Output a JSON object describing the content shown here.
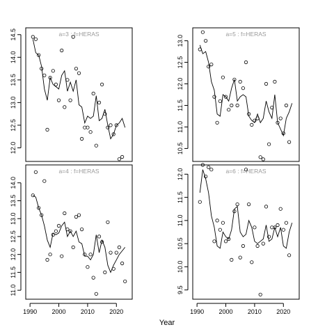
{
  "figure": {
    "xlabel": "Year"
  },
  "chart_data": [
    {
      "type": "scatter",
      "title": "a=3 : f=HERAS",
      "xlim": [
        1989,
        2025
      ],
      "ylim": [
        11.7,
        14.65
      ],
      "yticks": [
        12.0,
        12.5,
        13.0,
        13.5,
        14.0,
        14.5
      ],
      "xticks": [
        1990,
        2000,
        2010,
        2020
      ],
      "show_xticks": false,
      "series": [
        {
          "kind": "line",
          "x": [
            1991,
            1992,
            1993,
            1994,
            1995,
            1996,
            1997,
            1998,
            1999,
            2000,
            2001,
            2002,
            2003,
            2004,
            2005,
            2006,
            2007,
            2008,
            2009,
            2010,
            2011,
            2012,
            2013,
            2014,
            2015,
            2016,
            2017,
            2018,
            2019,
            2020,
            2021,
            2022,
            2023
          ],
          "y": [
            14.4,
            14.1,
            14.05,
            13.8,
            13.3,
            13.05,
            13.55,
            13.4,
            13.35,
            13.3,
            13.6,
            13.7,
            13.25,
            13.45,
            13.25,
            13.5,
            12.95,
            12.9,
            12.55,
            12.7,
            12.65,
            12.7,
            13.15,
            12.6,
            12.65,
            12.85,
            12.5,
            12.2,
            12.3,
            12.5,
            12.55,
            12.65,
            12.45
          ]
        },
        {
          "kind": "points",
          "x": [
            1991,
            1992,
            1993,
            1994,
            1995,
            1996,
            1997,
            1998,
            1999,
            2000,
            2001,
            2002,
            2003,
            2004,
            2005,
            2006,
            2007,
            2008,
            2009,
            2010,
            2011,
            2012,
            2013,
            2014,
            2015,
            2016,
            2017,
            2018,
            2019,
            2020,
            2021,
            2022,
            2023
          ],
          "y": [
            14.45,
            14.4,
            14.05,
            13.75,
            13.6,
            12.4,
            13.55,
            13.7,
            13.4,
            13.05,
            14.15,
            12.9,
            13.5,
            13.05,
            14.45,
            13.75,
            13.65,
            12.2,
            12.45,
            12.45,
            12.35,
            13.2,
            12.05,
            13.0,
            13.4,
            12.75,
            12.45,
            12.5,
            12.3,
            12.5,
            11.75,
            11.8,
            null
          ]
        }
      ]
    },
    {
      "type": "scatter",
      "title": "a=5 : f=HERAS",
      "xlim": [
        1989,
        2025
      ],
      "ylim": [
        10.2,
        13.3
      ],
      "yticks": [
        10.5,
        11.0,
        11.5,
        12.0,
        12.5,
        13.0
      ],
      "xticks": [
        1990,
        2000,
        2010,
        2020
      ],
      "show_xticks": false,
      "series": [
        {
          "kind": "line",
          "x": [
            1991,
            1992,
            1993,
            1994,
            1995,
            1996,
            1997,
            1998,
            1999,
            2000,
            2001,
            2002,
            2003,
            2004,
            2005,
            2006,
            2007,
            2008,
            2009,
            2010,
            2011,
            2012,
            2013,
            2014,
            2015,
            2016,
            2017,
            2018,
            2019,
            2020,
            2021,
            2022,
            2023
          ],
          "y": [
            12.9,
            12.7,
            12.75,
            12.5,
            12.05,
            11.85,
            11.3,
            11.25,
            11.75,
            11.7,
            11.6,
            11.9,
            12.1,
            11.6,
            11.7,
            11.75,
            11.7,
            11.25,
            11.15,
            11.1,
            11.3,
            11.1,
            11.2,
            11.6,
            11.35,
            11.2,
            11.75,
            11.1,
            10.95,
            10.8,
            11.2,
            11.35,
            11.55
          ]
        },
        {
          "kind": "points",
          "x": [
            1991,
            1992,
            1993,
            1994,
            1995,
            1996,
            1997,
            1998,
            1999,
            2000,
            2001,
            2002,
            2003,
            2004,
            2005,
            2006,
            2007,
            2008,
            2009,
            2010,
            2011,
            2012,
            2013,
            2014,
            2015,
            2016,
            2017,
            2018,
            2019,
            2020,
            2021,
            2022,
            2023
          ],
          "y": [
            12.8,
            13.2,
            13.0,
            12.4,
            12.45,
            11.7,
            11.1,
            11.6,
            12.15,
            11.7,
            11.4,
            11.5,
            12.1,
            11.5,
            12.05,
            11.9,
            12.5,
            11.3,
            11.05,
            11.15,
            11.2,
            10.3,
            10.25,
            12.0,
            10.6,
            11.45,
            12.05,
            11.1,
            11.2,
            10.85,
            11.5,
            10.65,
            null
          ]
        }
      ]
    },
    {
      "type": "scatter",
      "title": "a=4 : f=HERAS",
      "xlim": [
        1989,
        2025
      ],
      "ylim": [
        10.75,
        14.5
      ],
      "yticks": [
        11.0,
        11.5,
        12.0,
        12.5,
        13.0,
        13.5,
        14.0
      ],
      "xticks": [
        1990,
        2000,
        2010,
        2020
      ],
      "show_xticks": true,
      "series": [
        {
          "kind": "line",
          "x": [
            1991,
            1992,
            1993,
            1994,
            1995,
            1996,
            1997,
            1998,
            1999,
            2000,
            2001,
            2002,
            2003,
            2004,
            2005,
            2006,
            2007,
            2008,
            2009,
            2010,
            2011,
            2012,
            2013,
            2014,
            2015,
            2016,
            2017,
            2018,
            2019,
            2020,
            2021,
            2022,
            2023
          ],
          "y": [
            13.65,
            13.6,
            13.3,
            13.1,
            12.8,
            12.4,
            12.2,
            12.6,
            12.55,
            12.6,
            12.8,
            12.9,
            12.5,
            12.65,
            12.5,
            12.65,
            12.35,
            12.3,
            11.95,
            11.95,
            11.85,
            12.0,
            12.55,
            12.05,
            12.4,
            12.2,
            11.7,
            11.5,
            11.7,
            11.85,
            12.0,
            12.1,
            12.2
          ]
        },
        {
          "kind": "points",
          "x": [
            1991,
            1992,
            1993,
            1994,
            1995,
            1996,
            1997,
            1998,
            1999,
            2000,
            2001,
            2002,
            2003,
            2004,
            2005,
            2006,
            2007,
            2008,
            2009,
            2010,
            2011,
            2012,
            2013,
            2014,
            2015,
            2016,
            2017,
            2018,
            2019,
            2020,
            2021,
            2022,
            2023
          ],
          "y": [
            13.65,
            14.3,
            13.3,
            13.1,
            14.05,
            11.85,
            12.0,
            12.55,
            12.65,
            12.8,
            11.95,
            13.15,
            12.7,
            12.65,
            12.2,
            13.05,
            13.1,
            12.7,
            12.0,
            11.65,
            12.0,
            11.35,
            10.9,
            12.5,
            12.35,
            11.5,
            12.9,
            12.05,
            11.6,
            12.05,
            12.2,
            11.75,
            11.25
          ]
        }
      ]
    },
    {
      "type": "scatter",
      "title": "a=6 : f=HERAS",
      "xlim": [
        1989,
        2025
      ],
      "ylim": [
        9.3,
        12.2
      ],
      "yticks": [
        9.5,
        10.0,
        10.5,
        11.0,
        11.5,
        12.0
      ],
      "xticks": [
        1990,
        2000,
        2010,
        2020
      ],
      "show_xticks": true,
      "series": [
        {
          "kind": "line",
          "x": [
            1991,
            1992,
            1993,
            1994,
            1995,
            1996,
            1997,
            1998,
            1999,
            2000,
            2001,
            2002,
            2003,
            2004,
            2005,
            2006,
            2007,
            2008,
            2009,
            2010,
            2011,
            2012,
            2013,
            2014,
            2015,
            2016,
            2017,
            2018,
            2019,
            2020,
            2021,
            2022,
            2023
          ],
          "y": [
            11.6,
            12.1,
            11.9,
            11.6,
            11.1,
            10.85,
            10.45,
            10.4,
            10.75,
            10.65,
            10.6,
            10.8,
            11.25,
            11.3,
            10.75,
            10.65,
            10.7,
            11.0,
            10.85,
            10.55,
            10.5,
            10.55,
            10.6,
            10.9,
            10.55,
            10.6,
            10.85,
            10.65,
            10.85,
            10.45,
            10.4,
            10.75,
            10.95
          ]
        },
        {
          "kind": "points",
          "x": [
            1991,
            1992,
            1993,
            1994,
            1995,
            1996,
            1997,
            1998,
            1999,
            2000,
            2001,
            2002,
            2003,
            2004,
            2005,
            2006,
            2007,
            2008,
            2009,
            2010,
            2011,
            2012,
            2013,
            2014,
            2015,
            2016,
            2017,
            2018,
            2019,
            2020,
            2021,
            2022,
            2023
          ],
          "y": [
            11.4,
            12.2,
            11.95,
            12.15,
            12.1,
            10.55,
            11.0,
            10.8,
            10.95,
            10.55,
            10.6,
            10.15,
            11.2,
            11.35,
            10.2,
            10.45,
            12.1,
            11.35,
            10.1,
            10.85,
            10.45,
            9.4,
            10.5,
            11.3,
            10.65,
            10.85,
            10.85,
            10.9,
            11.25,
            10.8,
            10.95,
            10.25,
            null
          ]
        }
      ]
    }
  ]
}
